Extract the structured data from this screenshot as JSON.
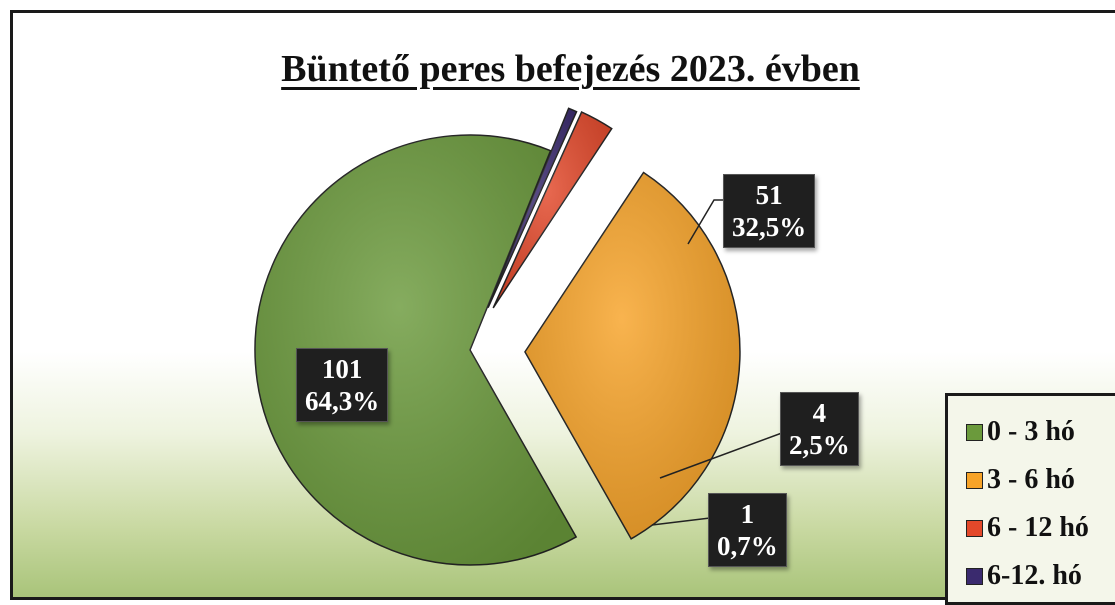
{
  "chart_data": {
    "type": "pie",
    "title": "Büntető peres befejezés 2023. évben",
    "categories": [
      "0 - 3 hó",
      "3 - 6 hó",
      "6 - 12 hó",
      "6-12. hó"
    ],
    "values": [
      101,
      51,
      4,
      1
    ],
    "percent_labels": [
      "64,3%",
      "32,5%",
      "2,5%",
      "0,7%"
    ],
    "colors": [
      "#6b9a3c",
      "#f7a328",
      "#e3482a",
      "#3a2a6e"
    ],
    "exploded": [
      false,
      true,
      true,
      true
    ],
    "legend_position": "bottom-right"
  }
}
